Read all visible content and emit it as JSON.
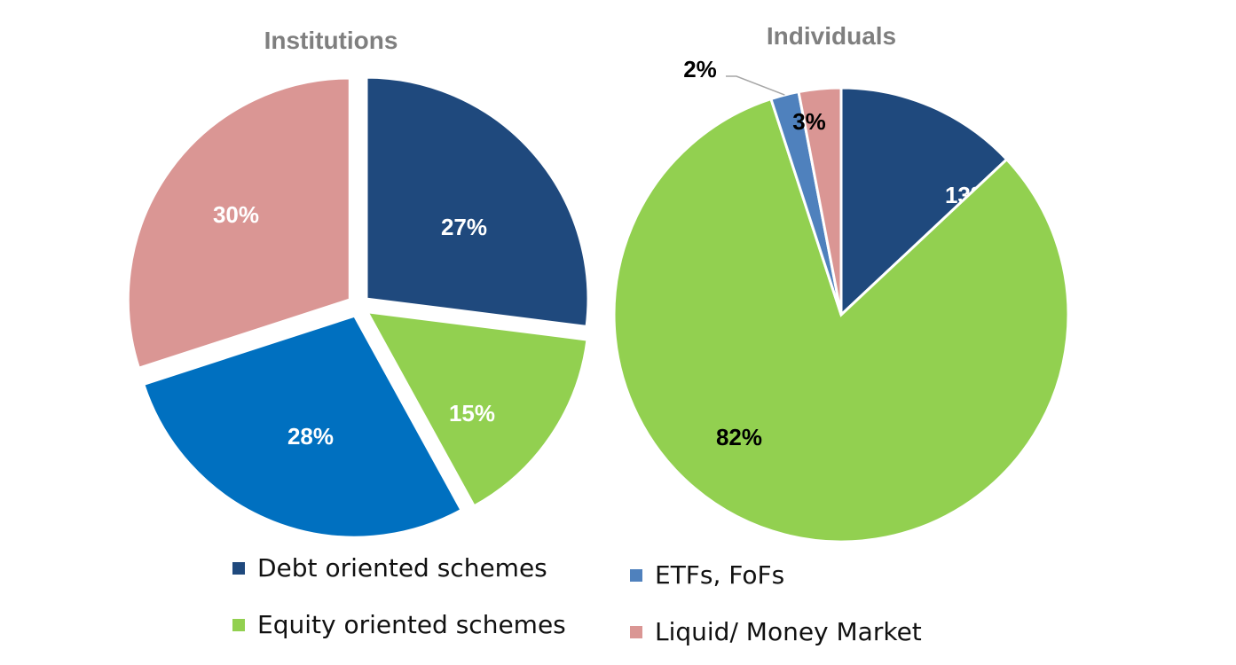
{
  "chart_data": [
    {
      "type": "pie",
      "title": "Institutions",
      "slices": [
        {
          "name": "Debt oriented schemes",
          "value": 27,
          "label": "27%",
          "color": "#1f497d",
          "label_color": "#ffffff"
        },
        {
          "name": "Equity oriented schemes",
          "value": 15,
          "label": "15%",
          "color": "#92d050",
          "label_color": "#ffffff"
        },
        {
          "name": "Debt oriented schemes (2)",
          "value": 28,
          "label": "28%",
          "color": "#0070c0",
          "label_color": "#ffffff"
        },
        {
          "name": "Liquid/ Money Market",
          "value": 30,
          "label": "30%",
          "color": "#da9694",
          "label_color": "#ffffff"
        }
      ]
    },
    {
      "type": "pie",
      "title": "Individuals",
      "slices": [
        {
          "name": "Debt oriented schemes",
          "value": 13,
          "label": "13%",
          "color": "#1f497d",
          "label_color": "#ffffff"
        },
        {
          "name": "Equity oriented schemes",
          "value": 82,
          "label": "82%",
          "color": "#92d050",
          "label_color": "#000000"
        },
        {
          "name": "ETFs, FoFs",
          "value": 2,
          "label": "2%",
          "color": "#4f81bd",
          "label_color": "#000000"
        },
        {
          "name": "Liquid/ Money Market",
          "value": 3,
          "label": "3%",
          "color": "#da9694",
          "label_color": "#000000"
        }
      ]
    }
  ],
  "legend": [
    {
      "label": "Debt oriented schemes",
      "color": "#1f497d"
    },
    {
      "label": "ETFs, FoFs",
      "color": "#4f81bd"
    },
    {
      "label": "Equity oriented schemes",
      "color": "#92d050"
    },
    {
      "label": "Liquid/ Money Market",
      "color": "#da9694"
    }
  ]
}
